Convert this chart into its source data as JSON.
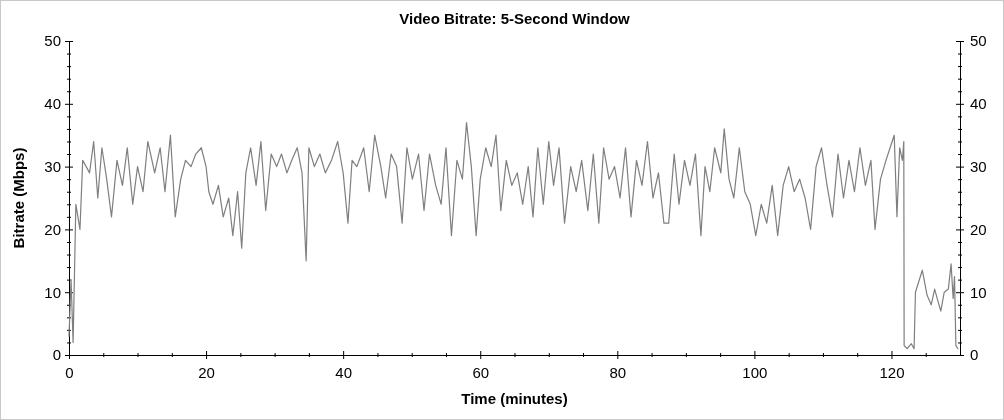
{
  "chart_data": {
    "type": "line",
    "title": "Video Bitrate: 5-Second Window",
    "xlabel": "Time (minutes)",
    "ylabel": "Bitrate (Mbps)",
    "xlim": [
      0,
      130
    ],
    "xticks": [
      0,
      {
        "value": 5,
        "label": null
      },
      {
        "value": 10,
        "label": null
      },
      {
        "value": 15,
        "label": null
      },
      20,
      {
        "value": 25,
        "label": null
      },
      {
        "value": 30,
        "label": null
      },
      {
        "value": 35,
        "label": null
      },
      40,
      {
        "value": 45,
        "label": null
      },
      {
        "value": 50,
        "label": null
      },
      {
        "value": 55,
        "label": null
      },
      60,
      {
        "value": 65,
        "label": null
      },
      {
        "value": 70,
        "label": null
      },
      {
        "value": 75,
        "label": null
      },
      80,
      {
        "value": 85,
        "label": null
      },
      {
        "value": 90,
        "label": null
      },
      {
        "value": 95,
        "label": null
      },
      100,
      {
        "value": 105,
        "label": null
      },
      {
        "value": 110,
        "label": null
      },
      {
        "value": 115,
        "label": null
      },
      120,
      {
        "value": 125,
        "label": null
      }
    ],
    "ylim": [
      0,
      50
    ],
    "yticks": [
      0,
      {
        "value": 2,
        "label": null
      },
      {
        "value": 4,
        "label": null
      },
      {
        "value": 6,
        "label": null
      },
      {
        "value": 8,
        "label": null
      },
      10,
      {
        "value": 12,
        "label": null
      },
      {
        "value": 14,
        "label": null
      },
      {
        "value": 16,
        "label": null
      },
      {
        "value": 18,
        "label": null
      },
      20,
      {
        "value": 22,
        "label": null
      },
      {
        "value": 24,
        "label": null
      },
      {
        "value": 26,
        "label": null
      },
      {
        "value": 28,
        "label": null
      },
      30,
      {
        "value": 32,
        "label": null
      },
      {
        "value": 34,
        "label": null
      },
      {
        "value": 36,
        "label": null
      },
      {
        "value": 38,
        "label": null
      },
      40,
      {
        "value": 42,
        "label": null
      },
      {
        "value": 44,
        "label": null
      },
      {
        "value": 46,
        "label": null
      },
      {
        "value": 48,
        "label": null
      },
      50
    ],
    "y2lim": [
      0,
      50
    ],
    "y2ticks": [
      0,
      {
        "value": 2,
        "label": null
      },
      {
        "value": 4,
        "label": null
      },
      {
        "value": 6,
        "label": null
      },
      {
        "value": 8,
        "label": null
      },
      10,
      {
        "value": 12,
        "label": null
      },
      {
        "value": 14,
        "label": null
      },
      {
        "value": 16,
        "label": null
      },
      {
        "value": 18,
        "label": null
      },
      20,
      {
        "value": 22,
        "label": null
      },
      {
        "value": 24,
        "label": null
      },
      {
        "value": 26,
        "label": null
      },
      {
        "value": 28,
        "label": null
      },
      30,
      {
        "value": 32,
        "label": null
      },
      {
        "value": 34,
        "label": null
      },
      {
        "value": 36,
        "label": null
      },
      {
        "value": 38,
        "label": null
      },
      40,
      {
        "value": 42,
        "label": null
      },
      {
        "value": 44,
        "label": null
      },
      {
        "value": 46,
        "label": null
      },
      {
        "value": 48,
        "label": null
      },
      50
    ],
    "marker": "none",
    "line_style": "solid",
    "series": [
      {
        "color": "#7f7f7f",
        "x": [
          0,
          0.3,
          0.6,
          1,
          1.6,
          2,
          3,
          3.6,
          4.2,
          4.8,
          5.5,
          6.2,
          7,
          7.8,
          8.5,
          9.3,
          10,
          10.8,
          11.5,
          12.5,
          13.3,
          14,
          14.8,
          15.5,
          16.3,
          17,
          17.8,
          18.5,
          19.3,
          20,
          20.4,
          21,
          21.8,
          22.5,
          23.3,
          23.9,
          24.6,
          25.2,
          25.8,
          26.5,
          27.3,
          28,
          28.7,
          29.5,
          30.3,
          31,
          31.8,
          32.5,
          33.3,
          34,
          34.6,
          35,
          35.8,
          36.6,
          37.4,
          38.3,
          39.2,
          40,
          40.7,
          41.3,
          42,
          43,
          43.8,
          44.6,
          45.5,
          46.2,
          47,
          47.8,
          48.6,
          49.3,
          50.1,
          51,
          51.8,
          52.6,
          53.5,
          54.3,
          55,
          55.8,
          56.6,
          57.4,
          58,
          58.7,
          59.4,
          60,
          60.8,
          61.6,
          62.3,
          63,
          63.8,
          64.6,
          65.4,
          66.2,
          67,
          67.7,
          68.4,
          69.2,
          70,
          70.7,
          71.5,
          72.3,
          73.2,
          74,
          74.8,
          75.7,
          76.5,
          77.3,
          78,
          78.8,
          79.6,
          80.4,
          81.2,
          82,
          82.8,
          83.6,
          84.4,
          85.2,
          86,
          86.8,
          87.5,
          88.3,
          89,
          89.8,
          90.6,
          91.4,
          92.2,
          92.8,
          93.5,
          94.2,
          95.1,
          95.6,
          96.3,
          97,
          97.8,
          98.6,
          99.4,
          100.2,
          101,
          101.8,
          102.6,
          103.4,
          104.2,
          105,
          105.8,
          106.6,
          107.4,
          108.2,
          109,
          109.8,
          110.6,
          111.4,
          112.2,
          113,
          113.8,
          114.6,
          115.4,
          116.2,
          117,
          117.6,
          118.4,
          119.2,
          119.8,
          120.4,
          120.8,
          121.2,
          121.6,
          121.8,
          121.85,
          122.3,
          122.9,
          123.3,
          123.5,
          124.5,
          125.2,
          125.8,
          126.3,
          126.8,
          127.2,
          127.7,
          128.3,
          128.7,
          129,
          129.2,
          129.4,
          129.7
        ],
        "values": [
          3,
          12,
          2,
          24,
          20,
          31,
          29,
          34,
          25,
          33,
          28,
          22,
          31,
          27,
          33,
          24,
          30,
          26,
          34,
          29,
          33,
          26,
          35,
          22,
          28,
          31,
          30,
          32,
          33,
          30,
          26,
          24,
          27,
          22,
          25,
          19,
          26,
          17,
          29,
          33,
          27,
          34,
          23,
          32,
          30,
          32,
          29,
          31,
          33,
          29,
          15,
          33,
          30,
          32,
          29,
          31,
          34,
          29,
          21,
          31,
          30,
          33,
          26,
          35,
          30,
          25,
          32,
          30,
          21,
          33,
          28,
          32,
          23,
          32,
          27,
          24,
          33,
          19,
          31,
          28,
          37,
          30,
          19,
          28,
          33,
          30,
          35,
          23,
          31,
          27,
          29,
          24,
          30,
          22,
          33,
          24,
          34,
          27,
          33,
          21,
          30,
          26,
          31,
          23,
          32,
          21,
          33,
          28,
          30,
          25,
          33,
          22,
          31,
          27,
          34,
          25,
          29,
          21,
          21,
          32,
          24,
          31,
          27,
          32,
          19,
          30,
          26,
          33,
          29,
          36,
          28,
          25,
          33,
          26,
          24,
          19,
          24,
          21,
          27,
          19,
          27,
          30,
          26,
          28,
          25,
          20,
          30,
          33,
          27,
          22,
          32,
          25,
          31,
          26,
          33,
          27,
          31,
          20,
          28,
          31,
          33,
          35,
          22,
          33,
          31,
          34,
          1.5,
          1,
          1.8,
          1,
          10,
          13.5,
          9.5,
          8,
          10.5,
          8.5,
          7,
          10,
          10.5,
          14.5,
          9,
          12.5,
          1.5,
          1
        ]
      }
    ]
  }
}
